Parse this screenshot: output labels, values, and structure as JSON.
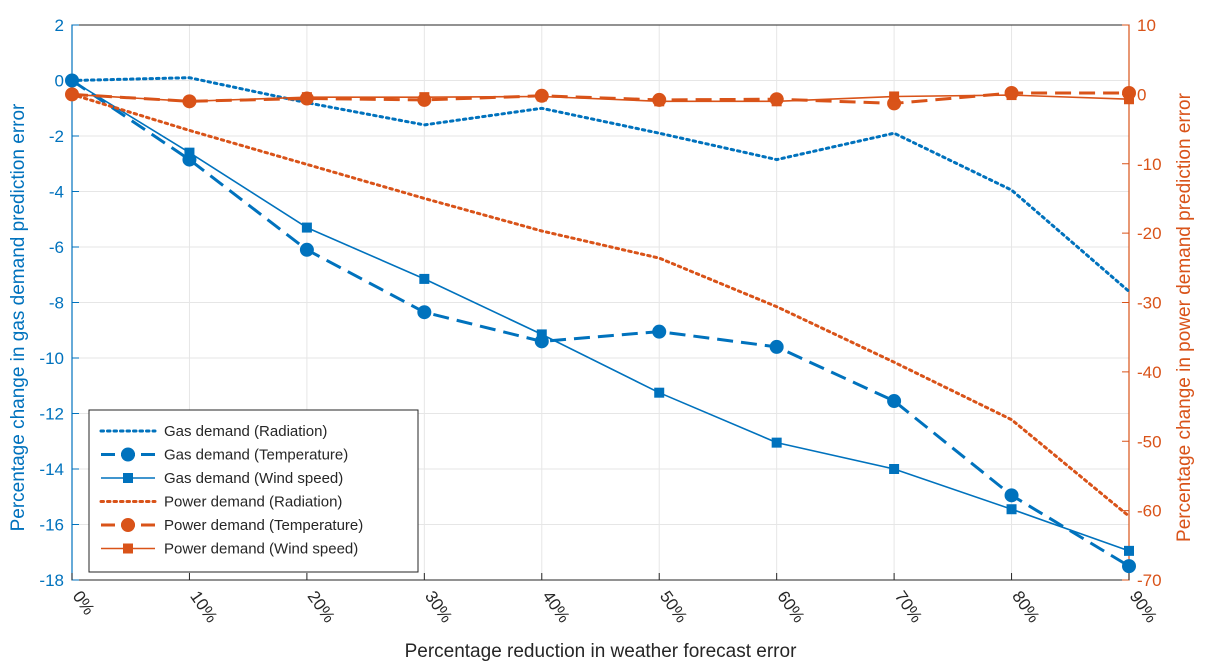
{
  "chart_data": {
    "type": "line",
    "title": "",
    "xlabel": "Percentage reduction in weather forecast error",
    "ylabel_left": "Percentage change in gas demand prediction error",
    "ylabel_right": "Percentage change in power demand prediction error",
    "categories": [
      "0%",
      "10%",
      "20%",
      "30%",
      "40%",
      "50%",
      "60%",
      "70%",
      "80%",
      "90%"
    ],
    "ylim_left": [
      -18,
      2
    ],
    "yticks_left": [
      "2",
      "0",
      "-2",
      "-4",
      "-6",
      "-8",
      "-10",
      "-12",
      "-14",
      "-16",
      "-18"
    ],
    "ylim_right": [
      -70,
      10
    ],
    "yticks_right": [
      "10",
      "0",
      "-10",
      "-20",
      "-30",
      "-40",
      "-50",
      "-60",
      "-70"
    ],
    "grid": true,
    "legend_position": "bottom-left",
    "colors": {
      "gas": "#0072BD",
      "power": "#D95319"
    },
    "series": [
      {
        "name": "Gas demand (Radiation)",
        "axis": "left",
        "style": "dotted",
        "marker": "none",
        "color": "#0072BD",
        "values": [
          0,
          0.1,
          -0.8,
          -1.6,
          -1.0,
          -1.9,
          -2.85,
          -1.9,
          -3.95,
          -7.6
        ]
      },
      {
        "name": "Gas demand (Temperature)",
        "axis": "left",
        "style": "dashed",
        "marker": "circle",
        "color": "#0072BD",
        "values": [
          0,
          -2.85,
          -6.1,
          -8.35,
          -9.4,
          -9.05,
          -9.6,
          -11.55,
          -14.95,
          -17.5
        ]
      },
      {
        "name": "Gas demand (Wind speed)",
        "axis": "left",
        "style": "solid",
        "marker": "square",
        "color": "#0072BD",
        "values": [
          0,
          -2.6,
          -5.3,
          -7.15,
          -9.15,
          -11.25,
          -13.05,
          -14.0,
          -15.45,
          -16.95
        ]
      },
      {
        "name": "Power demand (Radiation)",
        "axis": "right",
        "style": "dotted",
        "marker": "none",
        "color": "#D95319",
        "values": [
          0,
          -5.2,
          -10.1,
          -15.0,
          -19.7,
          -23.6,
          -30.6,
          -38.6,
          -46.9,
          -60.8
        ]
      },
      {
        "name": "Power demand (Temperature)",
        "axis": "right",
        "style": "dashed",
        "marker": "circle",
        "color": "#D95319",
        "values": [
          0,
          -1.0,
          -0.6,
          -0.8,
          -0.2,
          -0.8,
          -0.7,
          -1.3,
          0.2,
          0.2
        ]
      },
      {
        "name": "Power demand (Wind speed)",
        "axis": "right",
        "style": "solid",
        "marker": "square",
        "color": "#D95319",
        "values": [
          0,
          -1.0,
          -0.4,
          -0.4,
          -0.3,
          -1.0,
          -1.0,
          -0.3,
          -0.1,
          -0.7
        ]
      }
    ]
  }
}
